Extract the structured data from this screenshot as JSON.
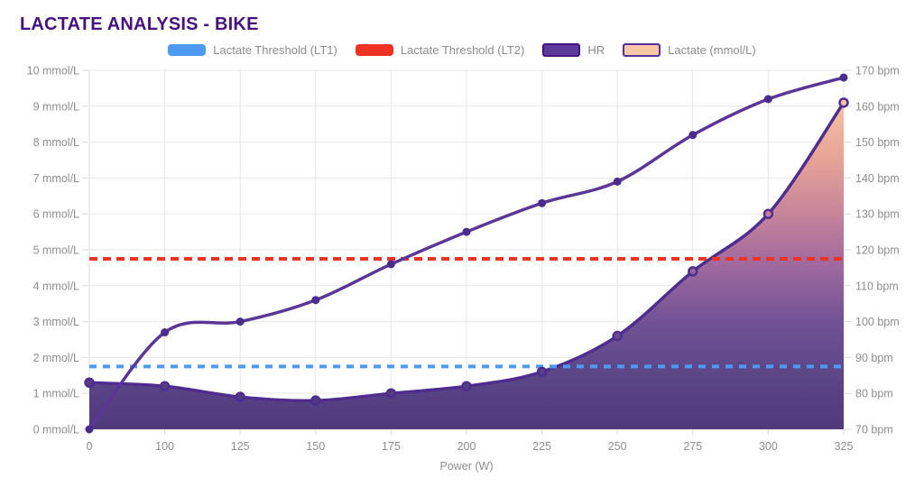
{
  "header": {
    "title": "LACTATE ANALYSIS - BIKE"
  },
  "legend": {
    "items": [
      {
        "label": "Lactate Threshold (LT1)",
        "swatch": "dashed-line",
        "color": "#4D9AF0"
      },
      {
        "label": "Lactate Threshold (LT2)",
        "swatch": "dashed-line",
        "color": "#EE3322"
      },
      {
        "label": "HR",
        "swatch": "filled-box",
        "color": "#5B3A9B",
        "border_color": "#46127D"
      },
      {
        "label": "Lactate (mmol/L)",
        "swatch": "filled-box",
        "color": "#F8C7A5",
        "border_color": "#53309A"
      }
    ]
  },
  "chart_data": {
    "type": "line",
    "title": "LACTATE ANALYSIS - BIKE",
    "xlabel": "Power (W)",
    "categories": [
      "0",
      "100",
      "125",
      "150",
      "175",
      "200",
      "225",
      "250",
      "275",
      "300",
      "325"
    ],
    "left_axis": {
      "unit": "mmol/L",
      "min": 0,
      "max": 10,
      "step": 1,
      "ticks": [
        "0 mmol/L",
        "1 mmol/L",
        "2 mmol/L",
        "3 mmol/L",
        "4 mmol/L",
        "5 mmol/L",
        "6 mmol/L",
        "7 mmol/L",
        "8 mmol/L",
        "9 mmol/L",
        "10 mmol/L"
      ]
    },
    "right_axis": {
      "unit": "bpm",
      "min": 70,
      "max": 170,
      "step": 10,
      "ticks": [
        "70 bpm",
        "80 bpm",
        "90 bpm",
        "100 bpm",
        "110 bpm",
        "120 bpm",
        "130 bpm",
        "140 bpm",
        "150 bpm",
        "160 bpm",
        "170 bpm"
      ]
    },
    "grid": true,
    "legend_position": "top",
    "series": [
      {
        "name": "HR",
        "axis": "right",
        "style": "line",
        "color": "#5A3797",
        "marker_color": "#4A2C8C",
        "values": [
          70,
          97,
          100,
          106,
          116,
          125,
          133,
          139,
          152,
          162,
          168
        ]
      },
      {
        "name": "Lactate (mmol/L)",
        "axis": "left",
        "style": "area",
        "line_color": "#4F2D8F",
        "values": [
          1.3,
          1.2,
          0.9,
          0.8,
          1.0,
          1.2,
          1.6,
          2.6,
          4.4,
          6.0,
          9.1
        ],
        "gradient": [
          {
            "offset": 0,
            "color": "#F9CCA8"
          },
          {
            "offset": 0.1,
            "color": "#F4BE9E"
          },
          {
            "offset": 0.25,
            "color": "#E5A093"
          },
          {
            "offset": 0.4,
            "color": "#C58097"
          },
          {
            "offset": 0.55,
            "color": "#9A639B"
          },
          {
            "offset": 0.7,
            "color": "#6D4C91"
          },
          {
            "offset": 0.85,
            "color": "#564084"
          },
          {
            "offset": 1,
            "color": "#4A3379"
          }
        ]
      }
    ],
    "thresholds": [
      {
        "name": "Lactate Threshold (LT1)",
        "axis": "left",
        "value": 1.75,
        "color": "#4D9AF0",
        "dash": [
          8,
          7
        ]
      },
      {
        "name": "Lactate Threshold (LT2)",
        "axis": "left",
        "value": 4.75,
        "color": "#EE3322",
        "dash": [
          9,
          6
        ]
      }
    ],
    "colors": {
      "grid": "#E7E7E7",
      "axis_line": "#DEDEDE",
      "tick": "#D9D9D9",
      "tick_label": "#8E8E8E",
      "title": "#46127D"
    }
  }
}
